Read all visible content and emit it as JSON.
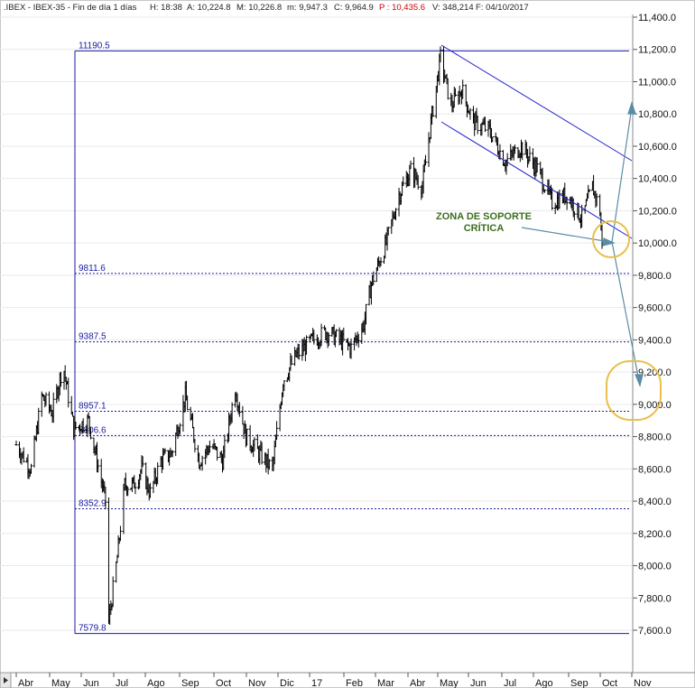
{
  "header": {
    "symbol": ".IBEX - IBEX-35 - Fin de día 1 días",
    "h": "H: 18:38",
    "a": "A: 10,224.8",
    "m": "M: 10,226.8",
    "min": "m: 9,947.3",
    "c": "C: 9,964.9",
    "p": "P : 10,435.6",
    "v": "V: 348,214",
    "f": "F: 04/10/2017"
  },
  "colors": {
    "price": "#000000",
    "fib": "#1a1aa0",
    "channel": "#2222cc",
    "arrow": "#5a8ca6",
    "circle": "#e8c04a",
    "annotation": "#3c6e1e",
    "header_red": "#d00000"
  },
  "chart_data": {
    "type": "candlestick",
    "title": "",
    "ylim": [
      7500,
      11400
    ],
    "y_ticks": [
      "11,400.0",
      "11,200.0",
      "11,000.0",
      "10,800.0",
      "10,600.0",
      "10,400.0",
      "10,200.0",
      "10,000.0",
      "9,800.0",
      "9,600.0",
      "9,400.0",
      "9,200.0",
      "9,000.0",
      "8,800.0",
      "8,600.0",
      "8,400.0",
      "8,200.0",
      "8,000.0",
      "7,800.0",
      "7,600.0"
    ],
    "y_tick_values": [
      11400,
      11200,
      11000,
      10800,
      10600,
      10400,
      10200,
      10000,
      9800,
      9600,
      9400,
      9200,
      9000,
      8800,
      8600,
      8400,
      8200,
      8000,
      7800,
      7600
    ],
    "x_ticks": [
      "Abr",
      "May",
      "Jun",
      "Jul",
      "Ago",
      "Sep",
      "Oct",
      "Nov",
      "Dic",
      "17",
      "Feb",
      "Mar",
      "Abr",
      "May",
      "Jun",
      "Jul",
      "Ago",
      "Sep",
      "Oct",
      "Nov"
    ],
    "series": [
      {
        "values": [
          [
            "2016-04-01",
            8750
          ],
          [
            "2016-04-15",
            8600
          ],
          [
            "2016-04-25",
            9050
          ],
          [
            "2016-05-05",
            8950
          ],
          [
            "2016-05-15",
            9250
          ],
          [
            "2016-05-25",
            8850
          ],
          [
            "2016-06-08",
            8900
          ],
          [
            "2016-06-16",
            8650
          ],
          [
            "2016-06-24",
            8400
          ],
          [
            "2016-06-27",
            7650
          ],
          [
            "2016-07-05",
            8050
          ],
          [
            "2016-07-12",
            8500
          ],
          [
            "2016-07-20",
            8500
          ],
          [
            "2016-07-28",
            8600
          ],
          [
            "2016-08-05",
            8450
          ],
          [
            "2016-08-15",
            8650
          ],
          [
            "2016-08-25",
            8700
          ],
          [
            "2016-09-07",
            9050
          ],
          [
            "2016-09-20",
            8650
          ],
          [
            "2016-10-01",
            8750
          ],
          [
            "2016-10-12",
            8650
          ],
          [
            "2016-10-24",
            9100
          ],
          [
            "2016-11-03",
            8800
          ],
          [
            "2016-11-15",
            8700
          ],
          [
            "2016-11-28",
            8600
          ],
          [
            "2016-12-08",
            9150
          ],
          [
            "2016-12-20",
            9300
          ],
          [
            "2017-01-05",
            9400
          ],
          [
            "2017-01-18",
            9450
          ],
          [
            "2017-01-30",
            9400
          ],
          [
            "2017-02-10",
            9350
          ],
          [
            "2017-02-22",
            9500
          ],
          [
            "2017-03-01",
            9750
          ],
          [
            "2017-03-15",
            10000
          ],
          [
            "2017-03-27",
            10300
          ],
          [
            "2017-04-07",
            10450
          ],
          [
            "2017-04-18",
            10350
          ],
          [
            "2017-04-25",
            10700
          ],
          [
            "2017-05-05",
            11150
          ],
          [
            "2017-05-15",
            10850
          ],
          [
            "2017-05-25",
            10950
          ],
          [
            "2017-06-05",
            10750
          ],
          [
            "2017-06-20",
            10700
          ],
          [
            "2017-07-05",
            10500
          ],
          [
            "2017-07-20",
            10600
          ],
          [
            "2017-08-05",
            10450
          ],
          [
            "2017-08-18",
            10250
          ],
          [
            "2017-09-01",
            10300
          ],
          [
            "2017-09-15",
            10150
          ],
          [
            "2017-09-25",
            10350
          ],
          [
            "2017-10-02",
            10200
          ],
          [
            "2017-10-04",
            9965
          ]
        ]
      }
    ],
    "fibonacci_levels": [
      {
        "label": "11190.5",
        "value": 11190.5
      },
      {
        "label": "9811.6",
        "value": 9811.6
      },
      {
        "label": "9387.5",
        "value": 9387.5
      },
      {
        "label": "8957.1",
        "value": 8957.1
      },
      {
        "label": "8806.6",
        "value": 8806.6
      },
      {
        "label": "8352.9",
        "value": 8352.9
      },
      {
        "label": "7579.8",
        "value": 7579.8
      }
    ],
    "annotations": [
      {
        "text_line1": "ZONA DE SOPORTE",
        "text_line2": "CRÍTICA"
      }
    ],
    "grid": true
  }
}
